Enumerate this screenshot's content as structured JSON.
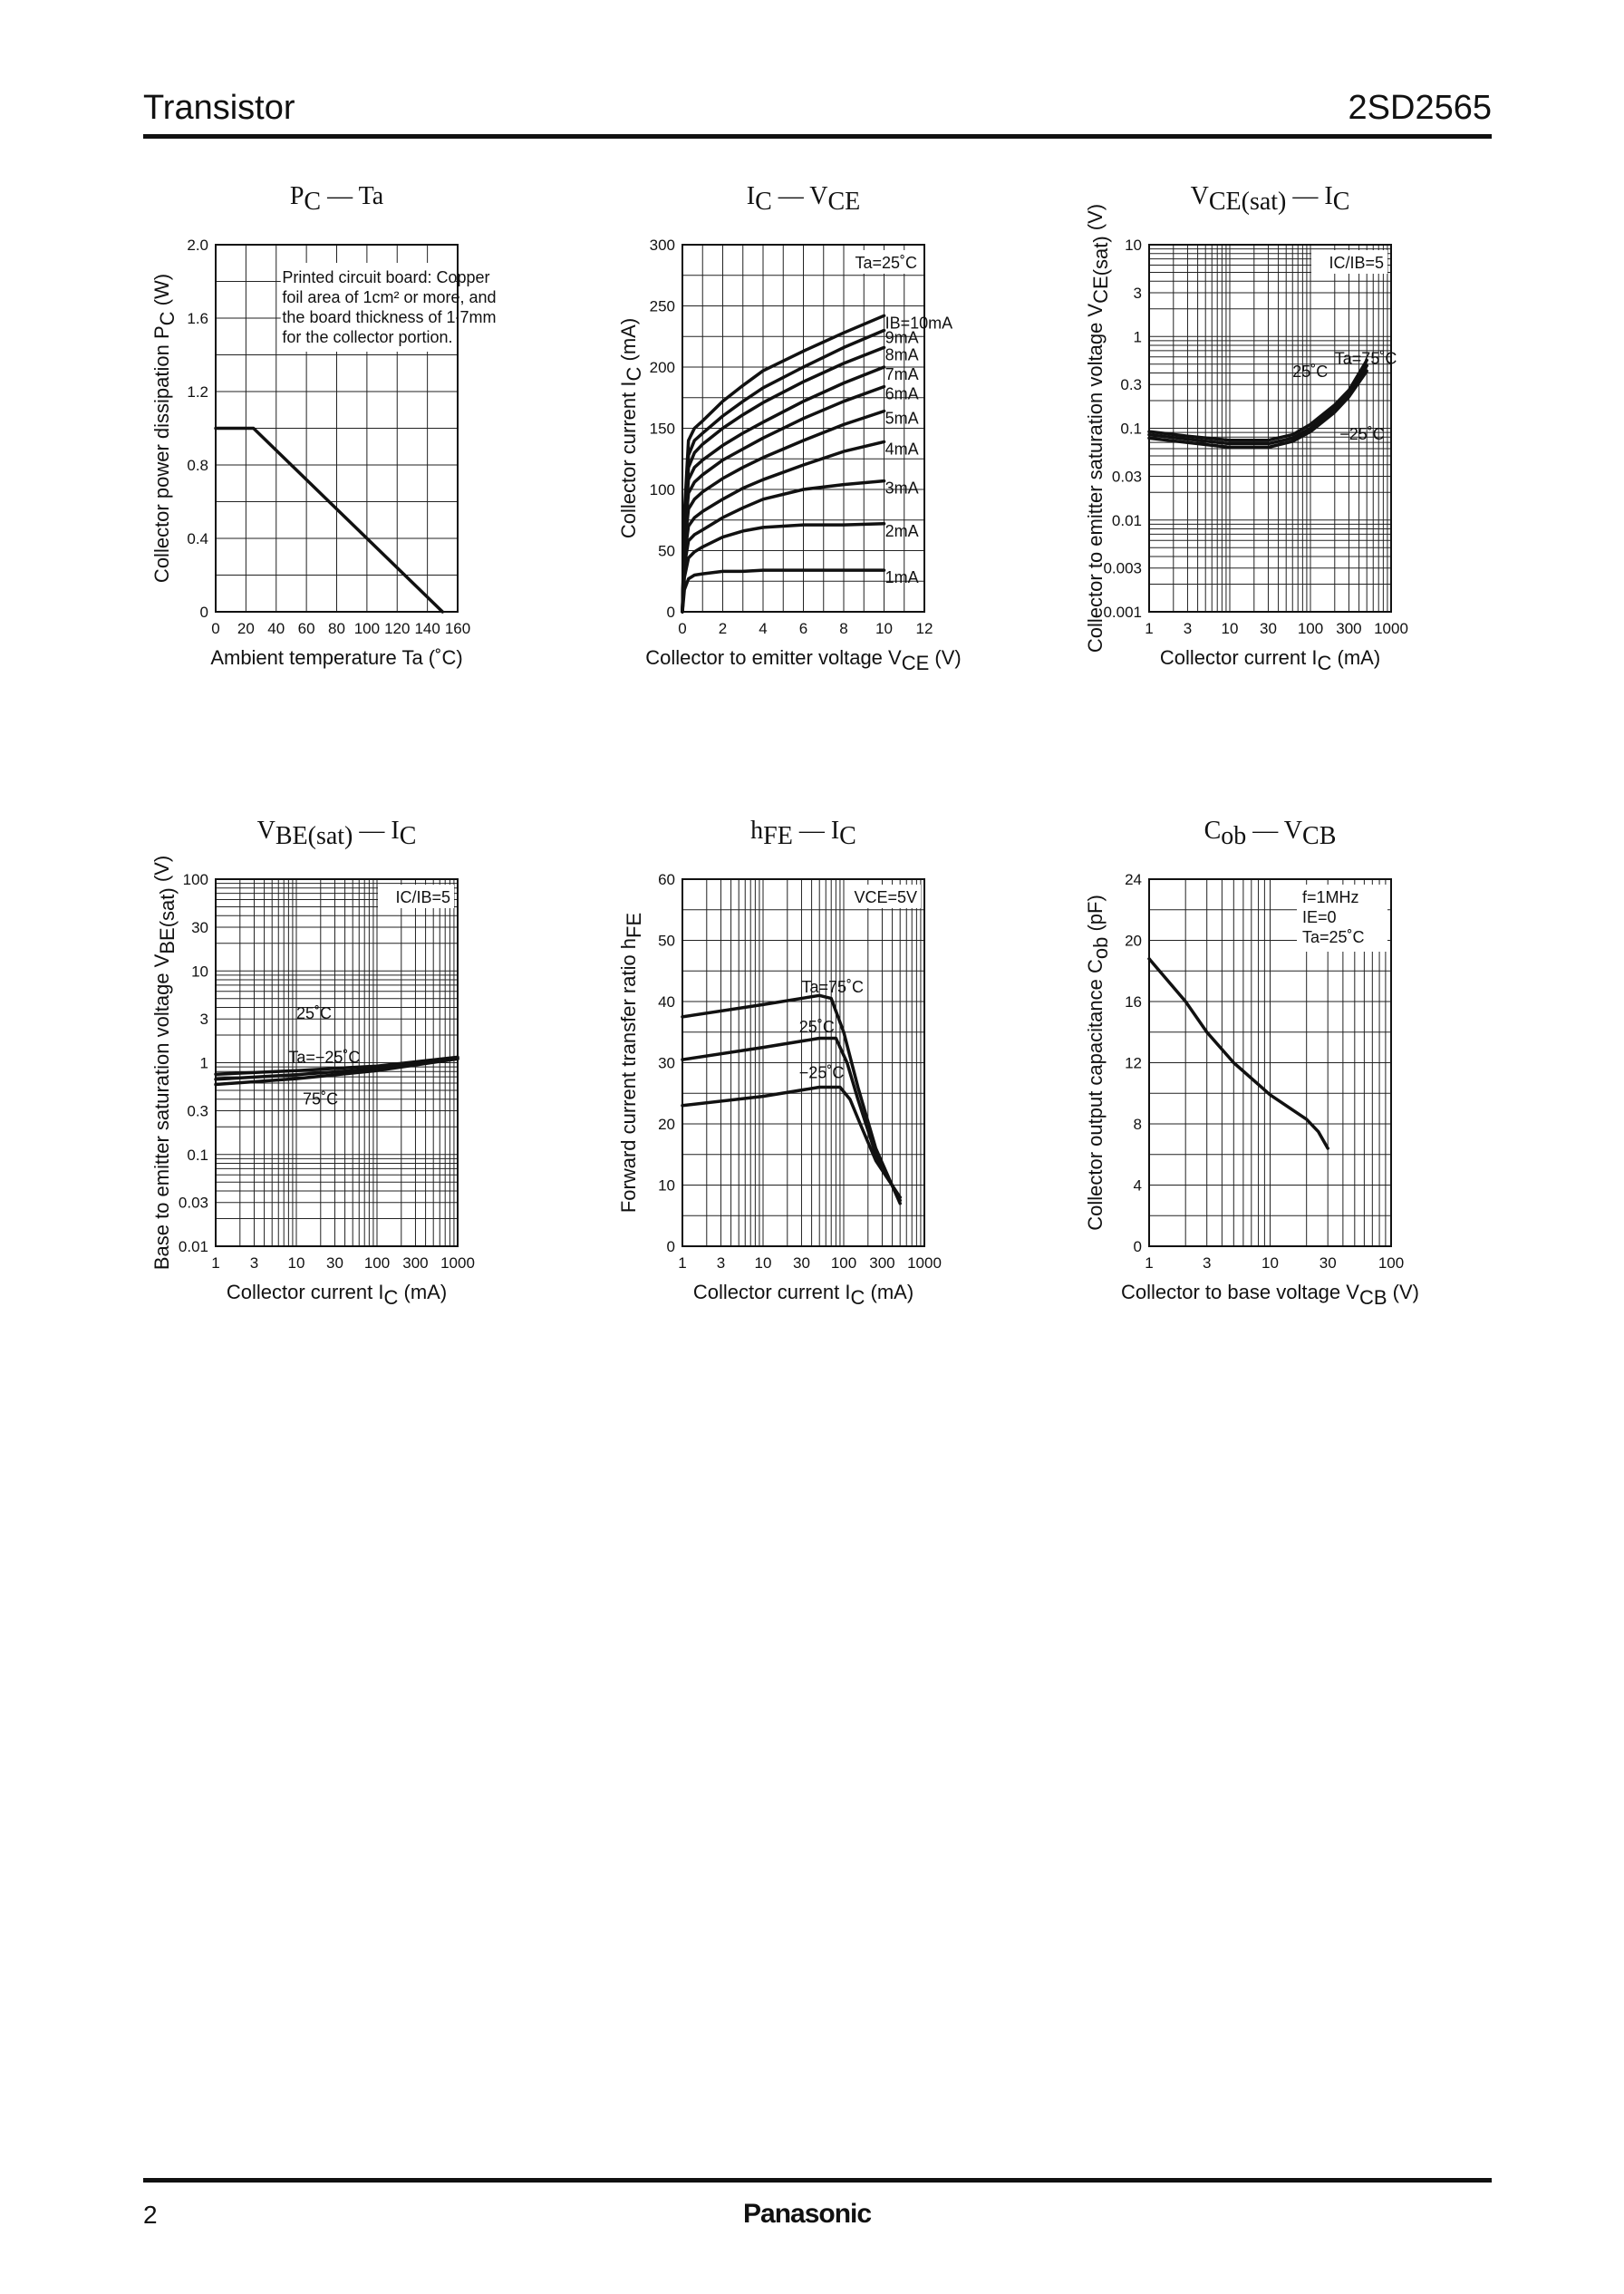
{
  "header": {
    "left": "Transistor",
    "right": "2SD2565"
  },
  "footer": {
    "page": "2",
    "brand": "Panasonic"
  },
  "chart_data": [
    {
      "id": "pc_ta",
      "type": "line",
      "title": {
        "main": "P",
        "sub": "C",
        "rest": " — Ta"
      },
      "xlabel": "Ambient temperature   Ta   (˚C)",
      "ylabel": {
        "main": "Collector power dissipation   P",
        "sub": "C",
        "rest": "   (W)"
      },
      "xscale": "linear",
      "yscale": "linear",
      "xlim": [
        0,
        160
      ],
      "ylim": [
        0,
        2.0
      ],
      "xticks": [
        0,
        20,
        40,
        60,
        80,
        100,
        120,
        140,
        160
      ],
      "xtick_labels": [
        "0",
        "20",
        "40",
        "60",
        "80",
        "100",
        "120",
        "140",
        "160"
      ],
      "yticks": [
        0,
        0.4,
        0.8,
        1.2,
        1.6,
        2.0
      ],
      "ytick_labels": [
        "0",
        "0.4",
        "0.8",
        "1.2",
        "1.6",
        "2.0"
      ],
      "xgrid": [
        0,
        20,
        40,
        60,
        80,
        100,
        120,
        140,
        160
      ],
      "ygrid": [
        0,
        0.2,
        0.4,
        0.6,
        0.8,
        1.0,
        1.2,
        1.4,
        1.6,
        1.8,
        2.0
      ],
      "series": [
        {
          "x": [
            0,
            25,
            150
          ],
          "y": [
            1.0,
            1.0,
            0
          ]
        }
      ],
      "note": [
        "Printed circuit board: Copper",
        "foil area of 1cm² or more, and",
        "the board thickness of 1.7mm",
        "for the collector portion."
      ]
    },
    {
      "id": "ic_vce",
      "type": "line",
      "title": {
        "main": "I",
        "sub": "C",
        "rest": " — V",
        "sub2": "CE"
      },
      "xlabel": {
        "main": "Collector to emitter voltage   V",
        "sub": "CE",
        "rest": "   (V)"
      },
      "ylabel": {
        "main": "Collector current   I",
        "sub": "C",
        "rest": "   (mA)"
      },
      "xscale": "linear",
      "yscale": "linear",
      "xlim": [
        0,
        12
      ],
      "ylim": [
        0,
        300
      ],
      "xticks": [
        0,
        2,
        4,
        6,
        8,
        10,
        12
      ],
      "xtick_labels": [
        "0",
        "2",
        "4",
        "6",
        "8",
        "10",
        "12"
      ],
      "yticks": [
        0,
        50,
        100,
        150,
        200,
        250,
        300
      ],
      "ytick_labels": [
        "0",
        "50",
        "100",
        "150",
        "200",
        "250",
        "300"
      ],
      "xgrid": [
        0,
        1,
        2,
        3,
        4,
        5,
        6,
        7,
        8,
        9,
        10,
        11,
        12
      ],
      "ygrid": [
        0,
        25,
        50,
        75,
        100,
        125,
        150,
        175,
        200,
        225,
        250,
        275,
        300
      ],
      "legend_box": "Ta=25˚C",
      "series": [
        {
          "name": "IB=10mA",
          "x": [
            0,
            0.1,
            0.3,
            0.6,
            1,
            2,
            3,
            4,
            6,
            8,
            10
          ],
          "y": [
            0,
            80,
            140,
            150,
            156,
            172,
            185,
            197,
            213,
            228,
            242
          ]
        },
        {
          "name": "9mA",
          "x": [
            0,
            0.1,
            0.3,
            0.6,
            1,
            2,
            3,
            4,
            6,
            8,
            10
          ],
          "y": [
            0,
            75,
            128,
            140,
            146,
            160,
            172,
            183,
            200,
            216,
            230
          ]
        },
        {
          "name": "8mA",
          "x": [
            0,
            0.1,
            0.3,
            0.6,
            1,
            2,
            3,
            4,
            6,
            8,
            10
          ],
          "y": [
            0,
            70,
            118,
            130,
            137,
            150,
            161,
            171,
            188,
            203,
            216
          ]
        },
        {
          "name": "7mA",
          "x": [
            0,
            0.1,
            0.3,
            0.6,
            1,
            2,
            3,
            4,
            6,
            8,
            10
          ],
          "y": [
            0,
            65,
            108,
            118,
            124,
            136,
            146,
            155,
            172,
            187,
            200
          ]
        },
        {
          "name": "6mA",
          "x": [
            0,
            0.1,
            0.3,
            0.6,
            1,
            2,
            3,
            4,
            6,
            8,
            10
          ],
          "y": [
            0,
            60,
            97,
            106,
            112,
            124,
            133,
            142,
            158,
            172,
            184
          ]
        },
        {
          "name": "5mA",
          "x": [
            0,
            0.1,
            0.3,
            0.6,
            1,
            2,
            3,
            4,
            6,
            8,
            10
          ],
          "y": [
            0,
            52,
            84,
            92,
            98,
            109,
            118,
            126,
            140,
            153,
            164
          ]
        },
        {
          "name": "4mA",
          "x": [
            0,
            0.1,
            0.3,
            0.6,
            1,
            2,
            3,
            4,
            6,
            8,
            10
          ],
          "y": [
            0,
            45,
            70,
            77,
            82,
            92,
            101,
            108,
            120,
            131,
            139
          ]
        },
        {
          "name": "3mA",
          "x": [
            0,
            0.1,
            0.3,
            0.6,
            1,
            2,
            3,
            4,
            6,
            8,
            10
          ],
          "y": [
            0,
            38,
            58,
            63,
            67,
            77,
            85,
            92,
            100,
            104,
            107
          ]
        },
        {
          "name": "2mA",
          "x": [
            0,
            0.1,
            0.3,
            0.6,
            1,
            2,
            3,
            4,
            6,
            8,
            10
          ],
          "y": [
            0,
            28,
            44,
            49,
            53,
            61,
            66,
            69,
            71,
            71,
            72
          ]
        },
        {
          "name": "1mA",
          "x": [
            0,
            0.1,
            0.3,
            0.6,
            1,
            2,
            3,
            4,
            6,
            8,
            10
          ],
          "y": [
            0,
            18,
            27,
            30,
            31,
            33,
            33,
            34,
            34,
            34,
            34
          ]
        }
      ]
    },
    {
      "id": "vcesat_ic",
      "type": "line",
      "title": {
        "main": "V",
        "sub": "CE(sat)",
        "rest": " — I",
        "sub2": "C"
      },
      "xlabel": {
        "main": "Collector current   I",
        "sub": "C",
        "rest": "   (mA)"
      },
      "ylabel": {
        "main": "Collector to emitter saturation voltage   V",
        "sub": "CE(sat)",
        "rest": "   (V)"
      },
      "xscale": "log",
      "yscale": "log",
      "xlim": [
        1,
        1000
      ],
      "ylim": [
        0.001,
        10
      ],
      "xticks": [
        1,
        3,
        10,
        30,
        100,
        300,
        1000
      ],
      "xtick_labels": [
        "1",
        "3",
        "10",
        "30",
        "100",
        "300",
        "1000"
      ],
      "yticks": [
        0.001,
        0.003,
        0.01,
        0.03,
        0.1,
        0.3,
        1,
        3,
        10
      ],
      "ytick_labels": [
        "0.001",
        "0.003",
        "0.01",
        "0.03",
        "0.1",
        "0.3",
        "1",
        "3",
        "10"
      ],
      "legend_box": "IC/IB=5",
      "series": [
        {
          "name": "Ta=75˚C",
          "x": [
            1,
            3,
            10,
            30,
            60,
            100,
            200,
            300,
            500
          ],
          "y": [
            0.092,
            0.082,
            0.074,
            0.074,
            0.085,
            0.11,
            0.18,
            0.26,
            0.55
          ]
        },
        {
          "name": "25˚C",
          "x": [
            1,
            3,
            10,
            30,
            60,
            100,
            200,
            300,
            500
          ],
          "y": [
            0.085,
            0.076,
            0.068,
            0.068,
            0.078,
            0.1,
            0.165,
            0.24,
            0.48
          ]
        },
        {
          "name": "−25˚C",
          "x": [
            1,
            3,
            10,
            30,
            60,
            100,
            200,
            300,
            500
          ],
          "y": [
            0.078,
            0.07,
            0.062,
            0.062,
            0.072,
            0.092,
            0.15,
            0.22,
            0.42
          ]
        }
      ]
    },
    {
      "id": "vbesat_ic",
      "type": "line",
      "title": {
        "main": "V",
        "sub": "BE(sat)",
        "rest": " — I",
        "sub2": "C"
      },
      "xlabel": {
        "main": "Collector current   I",
        "sub": "C",
        "rest": "   (mA)"
      },
      "ylabel": {
        "main": "Base to emitter saturation voltage   V",
        "sub": "BE(sat)",
        "rest": "   (V)"
      },
      "xscale": "log",
      "yscale": "log",
      "xlim": [
        1,
        1000
      ],
      "ylim": [
        0.01,
        100
      ],
      "xticks": [
        1,
        3,
        10,
        30,
        100,
        300,
        1000
      ],
      "xtick_labels": [
        "1",
        "3",
        "10",
        "30",
        "100",
        "300",
        "1000"
      ],
      "yticks": [
        0.01,
        0.03,
        0.1,
        0.3,
        1,
        3,
        10,
        30,
        100
      ],
      "ytick_labels": [
        "0.01",
        "0.03",
        "0.1",
        "0.3",
        "1",
        "3",
        "10",
        "30",
        "100"
      ],
      "legend_box": "IC/IB=5",
      "series": [
        {
          "name": "Ta=−25˚C",
          "x": [
            1,
            10,
            100,
            1000
          ],
          "y": [
            0.75,
            0.82,
            0.92,
            1.15
          ]
        },
        {
          "name": "25˚C",
          "x": [
            1,
            10,
            100,
            1000
          ],
          "y": [
            0.66,
            0.74,
            0.86,
            1.12
          ]
        },
        {
          "name": "75˚C",
          "x": [
            1,
            10,
            100,
            1000
          ],
          "y": [
            0.58,
            0.67,
            0.82,
            1.1
          ]
        }
      ]
    },
    {
      "id": "hfe_ic",
      "type": "line",
      "title": {
        "main": "h",
        "sub": "FE",
        "rest": " — I",
        "sub2": "C"
      },
      "xlabel": {
        "main": "Collector current   I",
        "sub": "C",
        "rest": "   (mA)"
      },
      "ylabel": {
        "main": "Forward current transfer ratio   h",
        "sub": "FE",
        "rest": ""
      },
      "xscale": "log",
      "yscale": "linear",
      "xlim": [
        1,
        1000
      ],
      "ylim": [
        0,
        60
      ],
      "xticks": [
        1,
        3,
        10,
        30,
        100,
        300,
        1000
      ],
      "xtick_labels": [
        "1",
        "3",
        "10",
        "30",
        "100",
        "300",
        "1000"
      ],
      "yticks": [
        0,
        10,
        20,
        30,
        40,
        50,
        60
      ],
      "ytick_labels": [
        "0",
        "10",
        "20",
        "30",
        "40",
        "50",
        "60"
      ],
      "ygrid": [
        0,
        5,
        10,
        15,
        20,
        25,
        30,
        35,
        40,
        45,
        50,
        55,
        60
      ],
      "legend_box": "VCE=5V",
      "series": [
        {
          "name": "Ta=75˚C",
          "x": [
            1,
            10,
            50,
            70,
            100,
            150,
            250,
            500
          ],
          "y": [
            37.5,
            39.5,
            41,
            40.5,
            35,
            26,
            16,
            7
          ]
        },
        {
          "name": "25˚C",
          "x": [
            1,
            10,
            50,
            80,
            110,
            150,
            250,
            500
          ],
          "y": [
            30.5,
            32.5,
            34,
            34,
            30,
            24,
            15,
            7.5
          ]
        },
        {
          "name": "−25˚C",
          "x": [
            1,
            10,
            50,
            90,
            120,
            160,
            250,
            500
          ],
          "y": [
            23,
            24.5,
            26,
            26,
            24,
            20,
            14,
            8
          ]
        }
      ]
    },
    {
      "id": "cob_vcb",
      "type": "line",
      "title": {
        "main": "C",
        "sub": "ob",
        "rest": " — V",
        "sub2": "CB"
      },
      "xlabel": {
        "main": "Collector to base voltage   V",
        "sub": "CB",
        "rest": "   (V)"
      },
      "ylabel": {
        "main": "Collector output capacitance   C",
        "sub": "ob",
        "rest": "   (pF)"
      },
      "xscale": "log",
      "yscale": "linear",
      "xlim": [
        1,
        100
      ],
      "ylim": [
        0,
        24
      ],
      "xticks": [
        1,
        3,
        10,
        30,
        100
      ],
      "xtick_labels": [
        "1",
        "3",
        "10",
        "30",
        "100"
      ],
      "yticks": [
        0,
        4,
        8,
        12,
        16,
        20,
        24
      ],
      "ytick_labels": [
        "0",
        "4",
        "8",
        "12",
        "16",
        "20",
        "24"
      ],
      "ygrid": [
        0,
        2,
        4,
        6,
        8,
        10,
        12,
        14,
        16,
        18,
        20,
        22,
        24
      ],
      "legend_lines": [
        "f=1MHz",
        "IE=0",
        "Ta=25˚C"
      ],
      "series": [
        {
          "x": [
            1,
            2,
            3,
            5,
            10,
            20,
            25,
            30
          ],
          "y": [
            18.8,
            16,
            14,
            12,
            9.9,
            8.3,
            7.5,
            6.4
          ]
        }
      ]
    }
  ]
}
